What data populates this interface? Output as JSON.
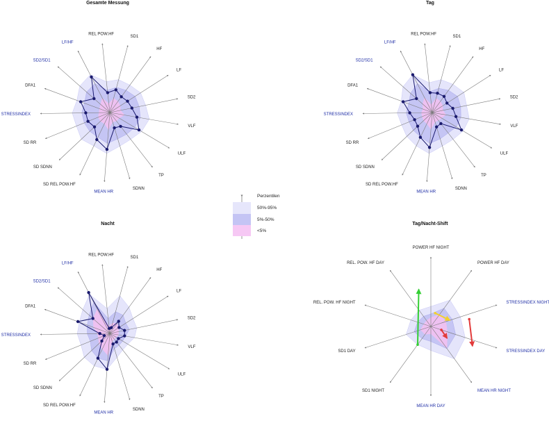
{
  "legend": {
    "title": "Perzentilen",
    "items": [
      {
        "label": "50%-95%",
        "color": "#e6e6fb"
      },
      {
        "label": "5%-50%",
        "color": "#c4c4f4"
      },
      {
        "label": "<5%",
        "color": "#f6c8f4"
      }
    ]
  },
  "colors": {
    "band_outer": "#dcdcfa",
    "band_mid": "#b9b9f1",
    "band_inner": "#f4bff0",
    "line": "#1a1a6e",
    "axis": "#7a7a7a",
    "shift_red": "#e23b3b",
    "shift_yellow": "#f2d02e",
    "shift_green": "#34cf34"
  },
  "chart_data": [
    {
      "type": "radar",
      "title": "Gesamte Messung",
      "axes": [
        "SD1",
        "HF",
        "LF",
        "SD2",
        "VLF",
        "ULF",
        "TP",
        "SDNN",
        "MEAN HR",
        "SD REL POW.HF",
        "SD SDNN",
        "SD RR",
        "STRESSINDEX",
        "DFA1",
        "SD2/SD1",
        "LF/HF",
        "REL POW.HF"
      ],
      "highlighted_axes": [
        "MEAN HR",
        "STRESSINDEX",
        "SD2/SD1",
        "LF/HF"
      ],
      "range": [
        0,
        1
      ],
      "band_outer": [
        0.68,
        0.68,
        0.73,
        0.73,
        0.8,
        0.74,
        0.68,
        0.7,
        0.82,
        0.74,
        0.78,
        0.72,
        0.75,
        0.7,
        0.8,
        0.85,
        0.62
      ],
      "band_mid": [
        0.52,
        0.55,
        0.6,
        0.6,
        0.62,
        0.58,
        0.55,
        0.55,
        0.62,
        0.55,
        0.55,
        0.55,
        0.56,
        0.54,
        0.62,
        0.65,
        0.45
      ],
      "band_inner": [
        0.3,
        0.28,
        0.25,
        0.22,
        0.3,
        0.22,
        0.22,
        0.2,
        0.35,
        0.25,
        0.26,
        0.25,
        0.22,
        0.22,
        0.25,
        0.33,
        0.18
      ],
      "values": [
        0.47,
        0.39,
        0.42,
        0.45,
        0.55,
        0.68,
        0.35,
        0.32,
        0.74,
        0.6,
        0.42,
        0.47,
        0.48,
        0.62,
        0.42,
        0.8,
        0.4
      ]
    },
    {
      "type": "radar",
      "title": "Tag",
      "axes": [
        "SD1",
        "HF",
        "LF",
        "SD2",
        "VLF",
        "ULF",
        "TP",
        "SDNN",
        "MEAN HR",
        "SD REL POW.HF",
        "SD SDNN",
        "SD RR",
        "STRESSINDEX",
        "DFA1",
        "SD2/SD1",
        "LF/HF",
        "REL POW.HF"
      ],
      "highlighted_axes": [
        "MEAN HR",
        "STRESSINDEX",
        "SD2/SD1",
        "LF/HF"
      ],
      "range": [
        0,
        1
      ],
      "band_outer": [
        0.68,
        0.7,
        0.75,
        0.7,
        0.75,
        0.72,
        0.68,
        0.7,
        0.82,
        0.74,
        0.7,
        0.66,
        0.7,
        0.66,
        0.78,
        0.85,
        0.6
      ],
      "band_mid": [
        0.5,
        0.55,
        0.6,
        0.58,
        0.58,
        0.56,
        0.52,
        0.55,
        0.62,
        0.54,
        0.52,
        0.5,
        0.52,
        0.5,
        0.58,
        0.65,
        0.42
      ],
      "band_inner": [
        0.3,
        0.28,
        0.25,
        0.22,
        0.28,
        0.22,
        0.2,
        0.2,
        0.34,
        0.25,
        0.24,
        0.22,
        0.22,
        0.2,
        0.26,
        0.34,
        0.16
      ],
      "values": [
        0.4,
        0.4,
        0.35,
        0.42,
        0.48,
        0.68,
        0.28,
        0.3,
        0.7,
        0.55,
        0.4,
        0.38,
        0.45,
        0.62,
        0.42,
        0.85,
        0.4
      ]
    },
    {
      "type": "radar",
      "title": "Nacht",
      "axes": [
        "SD1",
        "HF",
        "LF",
        "SD2",
        "VLF",
        "ULF",
        "TP",
        "SDNN",
        "MEAN HR",
        "SD REL POW.HF",
        "SD SDNN",
        "SD RR",
        "STRESSINDEX",
        "DFA1",
        "SD2/SD1",
        "LF/HF",
        "REL POW.HF"
      ],
      "highlighted_axes": [
        "MEAN HR",
        "STRESSINDEX",
        "SD2/SD1",
        "LF/HF"
      ],
      "range": [
        0,
        1
      ],
      "band_outer": [
        0.78,
        0.65,
        0.55,
        0.55,
        0.5,
        0.42,
        0.42,
        0.5,
        0.72,
        0.72,
        0.7,
        0.62,
        0.65,
        0.65,
        0.72,
        0.88,
        0.5
      ],
      "band_mid": [
        0.45,
        0.45,
        0.38,
        0.4,
        0.32,
        0.3,
        0.3,
        0.32,
        0.55,
        0.55,
        0.5,
        0.42,
        0.45,
        0.48,
        0.55,
        0.7,
        0.3
      ],
      "band_inner": [
        0.22,
        0.25,
        0.22,
        0.18,
        0.18,
        0.15,
        0.15,
        0.18,
        0.45,
        0.35,
        0.3,
        0.25,
        0.25,
        0.35,
        0.45,
        0.55,
        0.15
      ],
      "values": [
        0.12,
        0.3,
        0.22,
        0.3,
        0.3,
        0.2,
        0.22,
        0.22,
        0.72,
        0.55,
        0.22,
        0.12,
        0.2,
        0.68,
        0.45,
        0.92,
        0.1
      ]
    },
    {
      "type": "radar-shift",
      "title": "Tag/Nacht-Shift",
      "axes": [
        "POWER HF NIGHT",
        "POWER HF DAY",
        "STRESSINDEX NIGHT",
        "STRESSINDEX DAY",
        "MEAN HR NIGHT",
        "MEAN HR DAY",
        "SD1 NIGHT",
        "SD1 DAY",
        "REL. POW. HF NIGHT",
        "REL. POW. HF DAY"
      ],
      "highlighted_axes": [
        "STRESSINDEX NIGHT",
        "STRESSINDEX DAY",
        "MEAN HR NIGHT",
        "MEAN HR DAY"
      ],
      "range": [
        0,
        1
      ],
      "band_outer": [
        0.4,
        0.65,
        0.62,
        0.72,
        0.8,
        0.48,
        0.45,
        0.52,
        0.42,
        0.4
      ],
      "band_mid": [
        0.25,
        0.45,
        0.45,
        0.52,
        0.55,
        0.3,
        0.3,
        0.35,
        0.28,
        0.25
      ],
      "band_inner": [
        0.18,
        0.3,
        0.32,
        0.35,
        0.55,
        0.15,
        0.2,
        0.22,
        0.15,
        0.15
      ],
      "shifts": [
        {
          "from": [
            0.05,
            0.28
          ],
          "to": [
            0.2,
            0.4
          ],
          "color": "yellow"
        },
        {
          "from": [
            0.3,
            0.22
          ],
          "to": [
            0.35,
            0.4
          ],
          "color": "red"
        },
        {
          "from": [
            0.6,
            0.45
          ],
          "to": [
            0.95,
            0.78
          ],
          "color": "green"
        },
        {
          "from": [
            0.22,
            0.78
          ],
          "to": [
            0.32,
            0.92
          ],
          "color": "red"
        }
      ]
    }
  ]
}
